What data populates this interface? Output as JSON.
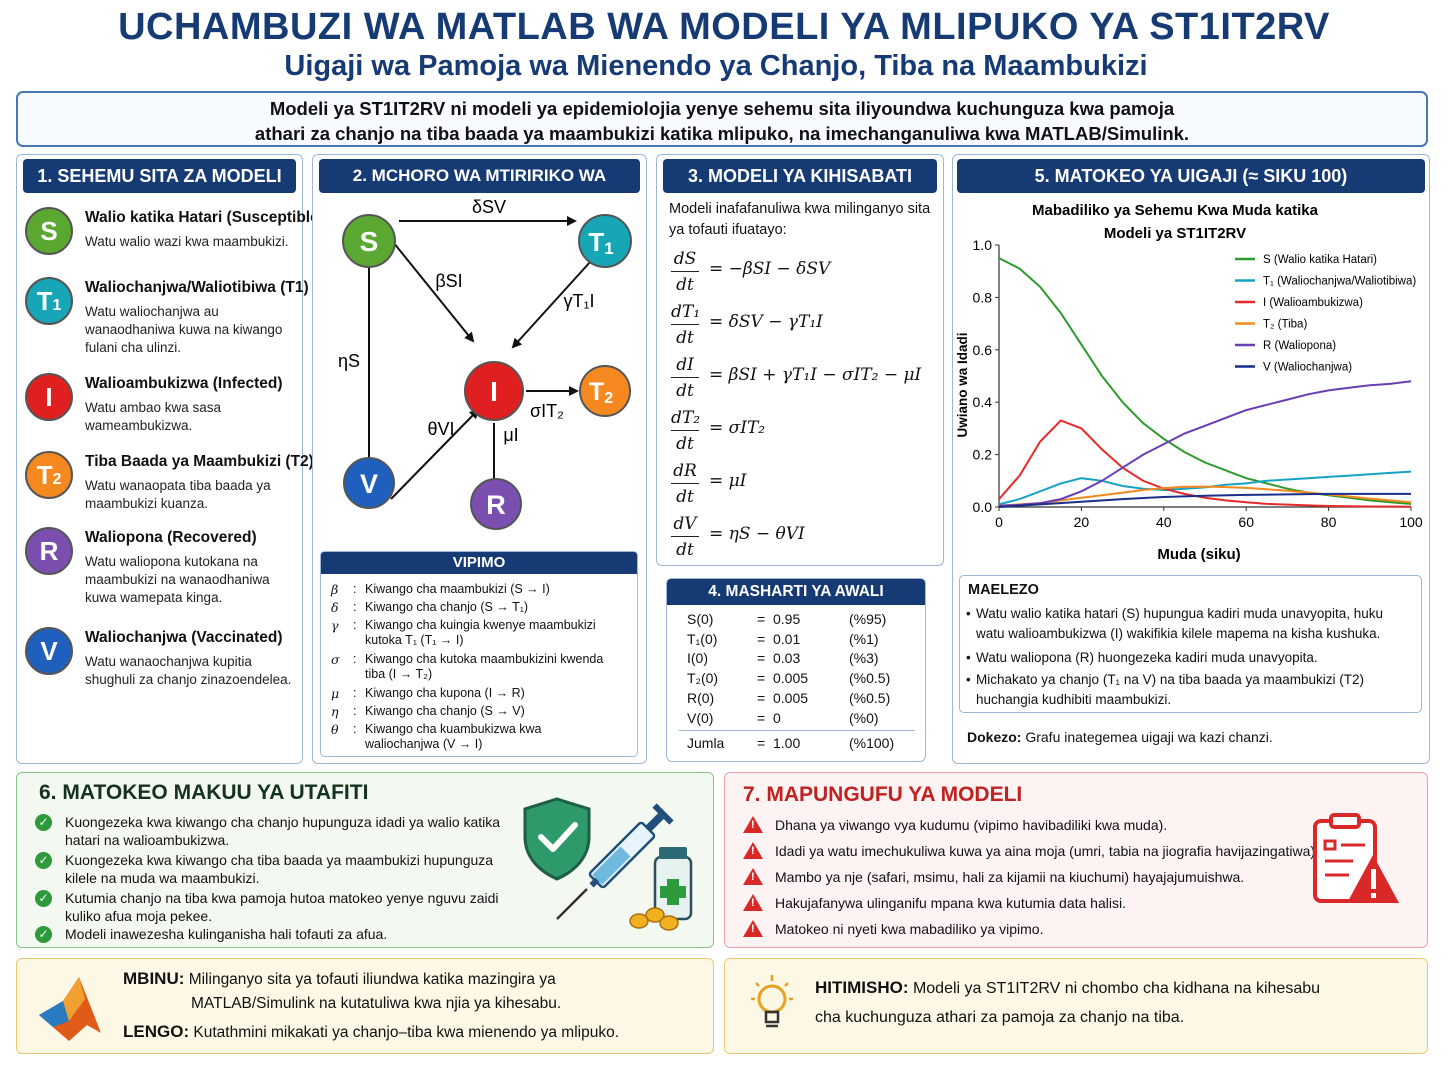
{
  "header": {
    "title": "UCHAMBUZI WA MATLAB WA MODELI YA MLIPUKO YA ST1IT2RV",
    "subtitle": "Uigaji wa Pamoja wa Mienendo ya Chanjo, Tiba na Maambukizi",
    "intro_line1": "Modeli ya ST1IT2RV ni modeli ya epidemiolojia yenye sehemu sita iliyoundwa kuchunguza kwa pamoja",
    "intro_line2": "athari za chanjo na tiba baada ya maambukizi katika mlipuko, na imechanganuliwa kwa MATLAB/Simulink."
  },
  "compartments": {
    "heading": "1. SEHEMU SITA ZA MODELI",
    "items": [
      {
        "letter": "S",
        "sub": "",
        "color": "#5aa832",
        "title": "Walio katika Hatari (Susceptible)",
        "desc": "Watu walio wazi kwa maambukizi."
      },
      {
        "letter": "T",
        "sub": "1",
        "color": "#16a6b6",
        "title": "Waliochanjwa/Waliotibiwa (T1)",
        "desc": "Watu waliochanjwa au wanaodhaniwa kuwa na kiwango fulani cha ulinzi."
      },
      {
        "letter": "I",
        "sub": "",
        "color": "#e02020",
        "title": "Walioambukizwa (Infected)",
        "desc": "Watu ambao kwa sasa wameambukizwa."
      },
      {
        "letter": "T",
        "sub": "2",
        "color": "#f5891f",
        "title": "Tiba Baada ya Maambukizi (T2)",
        "desc": "Watu wanaopata tiba baada ya maambukizi kuanza."
      },
      {
        "letter": "R",
        "sub": "",
        "color": "#7a4fb0",
        "title": "Waliopona (Recovered)",
        "desc": "Watu waliopona kutokana na maambukizi na wanaodhaniwa kuwa wamepata kinga."
      },
      {
        "letter": "V",
        "sub": "",
        "color": "#1f5fbd",
        "title": "Waliochanjwa (Vaccinated)",
        "desc": "Watu wanaochanjwa kupitia shughuli za chanjo zinazoendelea."
      }
    ]
  },
  "flow": {
    "heading": "2. MCHORO WA MTIRIRIKO WA MODELI",
    "nodes": {
      "S": "S",
      "T1": "T",
      "T1_sub": "1",
      "I": "I",
      "T2": "T",
      "T2_sub": "2",
      "V": "V",
      "R": "R"
    },
    "edges": {
      "S_T1": "δSV",
      "S_I": "βSI",
      "T1_I": "γT₁I",
      "S_V": "ηS",
      "I_T2": "σIT₂",
      "V_I": "θVI",
      "I_R": "μI"
    }
  },
  "params": {
    "heading": "VIPIMO",
    "items": [
      {
        "sym": "β",
        "text": "Kiwango cha maambukizi (S → I)"
      },
      {
        "sym": "δ",
        "text": "Kiwango cha chanjo (S → T₁)"
      },
      {
        "sym": "γ",
        "text": "Kiwango cha kuingia kwenye maambukizi kutoka T₁ (T₁ → I)"
      },
      {
        "sym": "σ",
        "text": "Kiwango cha kutoka maambukizini kwenda tiba (I → T₂)"
      },
      {
        "sym": "μ",
        "text": "Kiwango cha kupona (I → R)"
      },
      {
        "sym": "η",
        "text": "Kiwango cha chanjo (S → V)"
      },
      {
        "sym": "θ",
        "text": "Kiwango cha kuambukizwa kwa waliochanjwa (V → I)"
      }
    ]
  },
  "math_model": {
    "heading": "3. MODELI YA KIHISABATI",
    "intro": "Modeli inafafanuliwa kwa milinganyo sita ya tofauti ifuatayo:",
    "equations": [
      {
        "num": "dS",
        "den": "dt",
        "rhs": "= −βSI − δSV"
      },
      {
        "num": "dT₁",
        "den": "dt",
        "rhs": "= δSV − γT₁I"
      },
      {
        "num": "dI",
        "den": "dt",
        "rhs": "= βSI + γT₁I − σIT₂ − μI"
      },
      {
        "num": "dT₂",
        "den": "dt",
        "rhs": "= σIT₂"
      },
      {
        "num": "dR",
        "den": "dt",
        "rhs": "= μI"
      },
      {
        "num": "dV",
        "den": "dt",
        "rhs": "= ηS − θVI"
      }
    ]
  },
  "initial": {
    "heading": "4. MASHARTI YA AWALI",
    "rows": [
      {
        "name": "S(0)",
        "eq": "=",
        "val": "0.95",
        "pct": "(%95)"
      },
      {
        "name": "T₁(0)",
        "eq": "=",
        "val": "0.01",
        "pct": "(%1)"
      },
      {
        "name": "I(0)",
        "eq": "=",
        "val": "0.03",
        "pct": "(%3)"
      },
      {
        "name": "T₂(0)",
        "eq": "=",
        "val": "0.005",
        "pct": "(%0.5)"
      },
      {
        "name": "R(0)",
        "eq": "=",
        "val": "0.005",
        "pct": "(%0.5)"
      },
      {
        "name": "V(0)",
        "eq": "=",
        "val": "0",
        "pct": "(%0)"
      }
    ],
    "total": {
      "name": "Jumla",
      "eq": "=",
      "val": "1.00",
      "pct": "(%100)"
    }
  },
  "results": {
    "heading": "5. MATOKEO YA UIGAJI (≈ SIKU 100)",
    "explain_heading": "MAELEZO",
    "bullets": [
      "Watu walio katika hatari (S) hupungua kadiri muda unavyopita, huku watu walioambukizwa (I) wakifikia kilele mapema na kisha kushuka.",
      "Watu waliopona (R) huongezeka kadiri muda unavyopita.",
      "Michakato ya chanjo (T₁ na V) na tiba baada ya maambukizi (T2) huchangia kudhibiti maambukizi."
    ],
    "note_label": "Dokezo:",
    "note_text": "Grafu inategemea uigaji wa kazi chanzi."
  },
  "chart_data": {
    "type": "line",
    "title_line1": "Mabadiliko ya Sehemu Kwa Muda katika",
    "title_line2": "Modeli ya ST1IT2RV",
    "xlabel": "Muda (siku)",
    "ylabel": "Uwiano wa Idadi",
    "xlim": [
      0,
      100
    ],
    "ylim": [
      0,
      1.0
    ],
    "xticks": [
      "0",
      "20",
      "40",
      "60",
      "80",
      "100"
    ],
    "yticks": [
      "0.0",
      "0.2",
      "0.4",
      "0.6",
      "0.8",
      "1.0"
    ],
    "legend_position": "top-right",
    "series": [
      {
        "name": "S (Walio katika Hatari)",
        "color": "#2e9a2e",
        "x": [
          0,
          5,
          10,
          15,
          20,
          25,
          30,
          35,
          40,
          45,
          50,
          55,
          60,
          65,
          70,
          75,
          80,
          85,
          90,
          95,
          100
        ],
        "y": [
          0.95,
          0.91,
          0.84,
          0.74,
          0.62,
          0.5,
          0.4,
          0.32,
          0.26,
          0.21,
          0.17,
          0.14,
          0.11,
          0.09,
          0.07,
          0.055,
          0.045,
          0.035,
          0.025,
          0.018,
          0.012
        ]
      },
      {
        "name": "T₁ (Waliochanjwa/Waliotibiwa)",
        "color": "#17a2c4",
        "x": [
          0,
          5,
          10,
          15,
          20,
          25,
          30,
          35,
          40,
          45,
          50,
          55,
          60,
          65,
          70,
          75,
          80,
          85,
          90,
          95,
          100
        ],
        "y": [
          0.01,
          0.03,
          0.06,
          0.09,
          0.11,
          0.1,
          0.08,
          0.07,
          0.065,
          0.07,
          0.075,
          0.085,
          0.09,
          0.1,
          0.105,
          0.11,
          0.115,
          0.12,
          0.125,
          0.13,
          0.135
        ]
      },
      {
        "name": "I (Walioambukizwa)",
        "color": "#e52a2a",
        "x": [
          0,
          5,
          10,
          15,
          20,
          25,
          30,
          35,
          40,
          45,
          50,
          55,
          60,
          65,
          70,
          75,
          80,
          85,
          90,
          95,
          100
        ],
        "y": [
          0.03,
          0.12,
          0.25,
          0.33,
          0.3,
          0.22,
          0.15,
          0.1,
          0.07,
          0.05,
          0.035,
          0.025,
          0.018,
          0.012,
          0.009,
          0.006,
          0.004,
          0.003,
          0.002,
          0.0015,
          0.001
        ]
      },
      {
        "name": "T₂ (Tiba)",
        "color": "#f5891f",
        "x": [
          0,
          5,
          10,
          15,
          20,
          25,
          30,
          35,
          40,
          45,
          50,
          55,
          60,
          65,
          70,
          75,
          80,
          85,
          90,
          95,
          100
        ],
        "y": [
          0.005,
          0.01,
          0.015,
          0.025,
          0.035,
          0.045,
          0.055,
          0.065,
          0.072,
          0.077,
          0.078,
          0.076,
          0.073,
          0.068,
          0.062,
          0.055,
          0.048,
          0.04,
          0.032,
          0.025,
          0.018
        ]
      },
      {
        "name": "R (Waliopona)",
        "color": "#6a3db5",
        "x": [
          0,
          5,
          10,
          15,
          20,
          25,
          30,
          35,
          40,
          45,
          50,
          55,
          60,
          65,
          70,
          75,
          80,
          85,
          90,
          95,
          100
        ],
        "y": [
          0.005,
          0.008,
          0.015,
          0.03,
          0.06,
          0.1,
          0.15,
          0.2,
          0.24,
          0.28,
          0.31,
          0.34,
          0.37,
          0.39,
          0.41,
          0.43,
          0.445,
          0.455,
          0.465,
          0.47,
          0.48
        ]
      },
      {
        "name": "V (Waliochanjwa)",
        "color": "#1a2f8a",
        "x": [
          0,
          10,
          20,
          30,
          40,
          50,
          60,
          70,
          80,
          90,
          100
        ],
        "y": [
          0,
          0.01,
          0.02,
          0.03,
          0.038,
          0.043,
          0.046,
          0.048,
          0.05,
          0.05,
          0.05
        ]
      }
    ]
  },
  "findings": {
    "heading": "6. MATOKEO MAKUU YA UTAFITI",
    "items": [
      "Kuongezeka kwa kiwango cha chanjo hupunguza idadi ya walio katika hatari na walioambukizwa.",
      "Kuongezeka kwa kiwango cha tiba baada ya maambukizi hupunguza kilele na muda wa maambukizi.",
      "Kutumia chanjo na tiba kwa pamoja hutoa matokeo yenye nguvu zaidi kuliko afua moja pekee.",
      "Modeli inawezesha kulinganisha hali tofauti za afua."
    ]
  },
  "limitations": {
    "heading": "7. MAPUNGUFU YA MODELI",
    "items": [
      "Dhana ya viwango vya kudumu (vipimo havibadiliki kwa muda).",
      "Idadi ya watu imechukuliwa kuwa ya aina moja (umri, tabia na jiografia havijazingatiwa).",
      "Mambo ya nje (safari, msimu, hali za kijamii na kiuchumi) hayajajumuishwa.",
      "Hakujafanywa ulinganifu mpana kwa kutumia data halisi.",
      "Matokeo ni nyeti kwa mabadiliko ya vipimo."
    ]
  },
  "method": {
    "label": "MBINU:",
    "line1": "Milinganyo sita ya tofauti iliundwa katika mazingira ya",
    "line2": "MATLAB/Simulink na kutatuliwa kwa njia ya kihesabu.",
    "goal_label": "LENGO:",
    "goal_text": "Kutathmini mikakati ya chanjo–tiba kwa mienendo ya mlipuko."
  },
  "conclusion": {
    "label": "HITIMISHO:",
    "line1": "Modeli ya ST1IT2RV ni  chombo cha kidhana na kihesabu",
    "line2": "cha kuchunguza athari za pamoja za chanjo na tiba."
  },
  "colors": {
    "navy": "#163a73",
    "green": "#2e9a3c",
    "red": "#d82828"
  }
}
